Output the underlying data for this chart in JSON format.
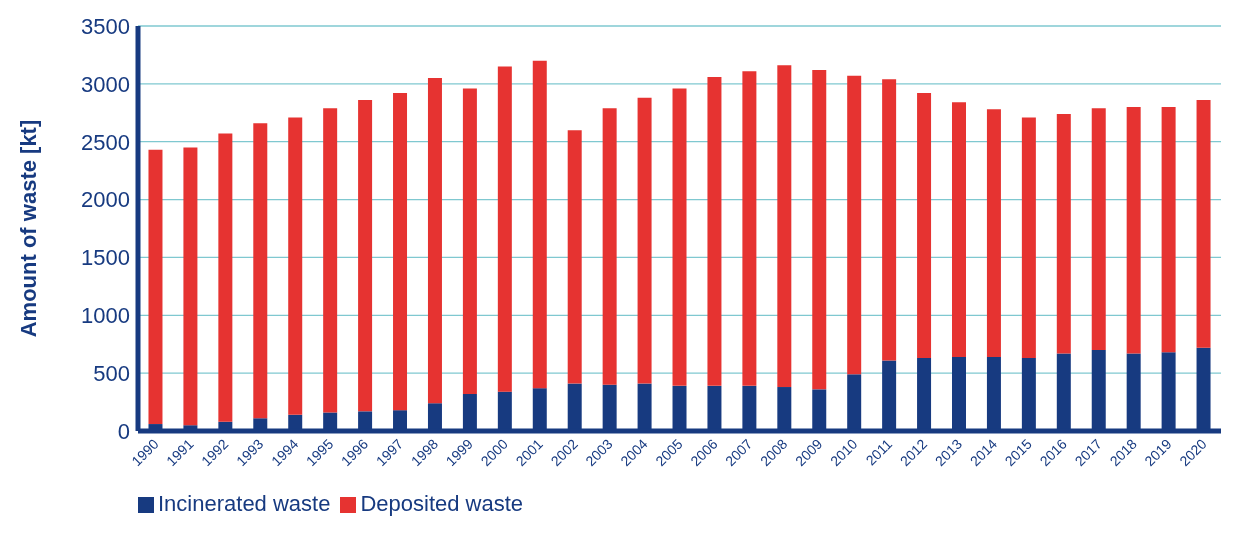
{
  "chart_data": {
    "type": "bar",
    "stacked": true,
    "ylabel": "Amount of waste [kt]",
    "categories": [
      "1990",
      "1991",
      "1992",
      "1993",
      "1994",
      "1995",
      "1996",
      "1997",
      "1998",
      "1999",
      "2000",
      "2001",
      "2002",
      "2003",
      "2004",
      "2005",
      "2006",
      "2007",
      "2008",
      "2009",
      "2010",
      "2011",
      "2012",
      "2013",
      "2014",
      "2015",
      "2016",
      "2017",
      "2018",
      "2019",
      "2020"
    ],
    "series": [
      {
        "name": "Incinerated waste",
        "color": "#173a80",
        "values": [
          60,
          50,
          80,
          110,
          140,
          160,
          170,
          180,
          240,
          320,
          340,
          370,
          410,
          400,
          410,
          390,
          390,
          390,
          380,
          360,
          490,
          610,
          630,
          640,
          640,
          630,
          670,
          700,
          670,
          680,
          720
        ]
      },
      {
        "name": "Deposited waste",
        "color": "#e63331",
        "values": [
          2370,
          2400,
          2490,
          2550,
          2570,
          2630,
          2690,
          2740,
          2810,
          2640,
          2810,
          2830,
          2190,
          2390,
          2470,
          2570,
          2670,
          2720,
          2780,
          2760,
          2580,
          2430,
          2290,
          2200,
          2140,
          2080,
          2070,
          2090,
          2130,
          2120,
          2140
        ]
      }
    ],
    "ylim": [
      0,
      3500
    ],
    "yticks": [
      0,
      500,
      1000,
      1500,
      2000,
      2500,
      3000,
      3500
    ],
    "grid": "y",
    "legend": "bottom left"
  }
}
